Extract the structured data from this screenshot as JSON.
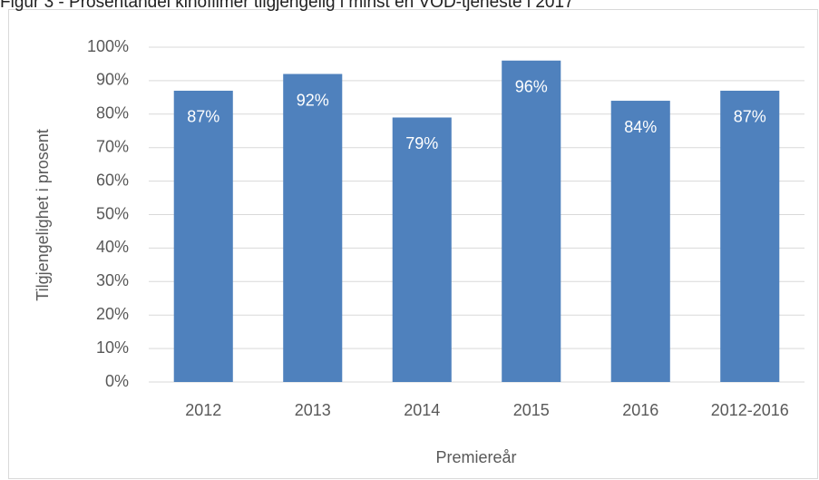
{
  "chart_data": {
    "type": "bar",
    "title": "Figur 3 - Prosentandel kinofilmer tilgjengelig i minst en VOD-tjeneste i 2017",
    "x_label": "Premiereår",
    "y_label": "Tilgjengelighet i prosent",
    "categories": [
      "2012",
      "2013",
      "2014",
      "2015",
      "2016",
      "2012-2016"
    ],
    "values": [
      87,
      92,
      79,
      96,
      84,
      87
    ],
    "value_labels": [
      "87%",
      "92%",
      "79%",
      "96%",
      "84%",
      "87%"
    ],
    "color": "#4f81bd",
    "ylim": [
      0,
      100
    ],
    "yticks": [
      {
        "value": 0,
        "label": "0%"
      },
      {
        "value": 10,
        "label": "10%"
      },
      {
        "value": 20,
        "label": "20%"
      },
      {
        "value": 30,
        "label": "30%"
      },
      {
        "value": 40,
        "label": "40%"
      },
      {
        "value": 50,
        "label": "50%"
      },
      {
        "value": 60,
        "label": "60%"
      },
      {
        "value": 70,
        "label": "70%"
      },
      {
        "value": 80,
        "label": "80%"
      },
      {
        "value": 90,
        "label": "90%"
      },
      {
        "value": 100,
        "label": "100%"
      }
    ],
    "grid": true
  }
}
